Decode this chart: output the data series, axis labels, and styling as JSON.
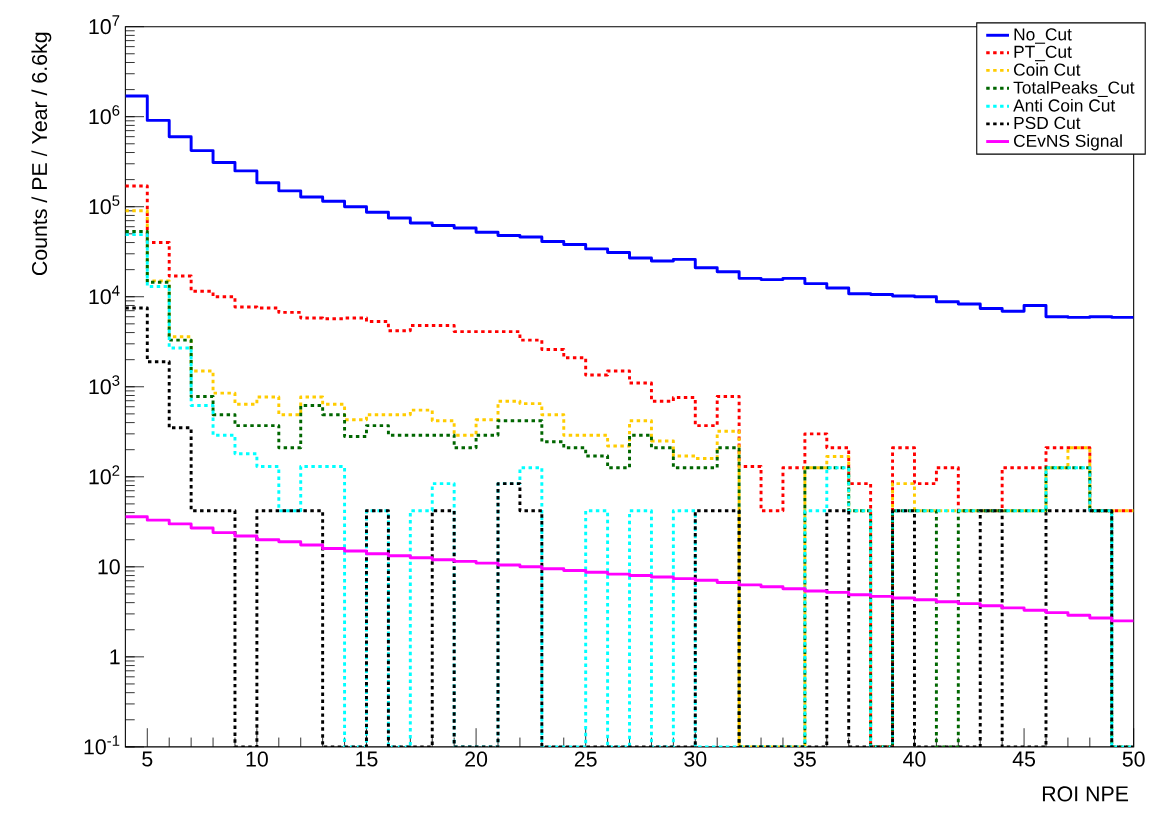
{
  "chart_data": {
    "type": "histogram",
    "xlabel": "ROI NPE",
    "ylabel": "Counts / PE / Year / 6.6kg",
    "bins": [
      4,
      5,
      6,
      7,
      8,
      9,
      10,
      11,
      12,
      13,
      14,
      15,
      16,
      17,
      18,
      19,
      20,
      21,
      22,
      23,
      24,
      25,
      26,
      27,
      28,
      29,
      30,
      31,
      32,
      33,
      34,
      35,
      36,
      37,
      38,
      39,
      40,
      41,
      42,
      43,
      44,
      45,
      46,
      47,
      48,
      49,
      50
    ],
    "xlim": [
      4,
      50
    ],
    "xticks": [
      5,
      10,
      15,
      20,
      25,
      30,
      35,
      40,
      45,
      50
    ],
    "ylim": [
      0.1,
      10000000
    ],
    "log": "y",
    "yticks": [
      {
        "value": 0.1,
        "label": "10$^{-1}$"
      },
      1,
      10,
      {
        "value": 100,
        "label": "10$^{2}$"
      },
      {
        "value": 1000,
        "label": "10$^{3}$"
      },
      {
        "value": 10000,
        "label": "10$^{4}$"
      },
      {
        "value": 100000,
        "label": "10$^{5}$"
      },
      {
        "value": 1000000,
        "label": "10$^{6}$"
      },
      {
        "value": 10000000,
        "label": "10$^{7}$"
      }
    ],
    "legend": "top right",
    "series": [
      {
        "name": "No_Cut",
        "color": "#0000ff",
        "line_style": "solid",
        "values": [
          1700000,
          910000,
          600000,
          420000,
          310000,
          250000,
          185000,
          150000,
          128000,
          115000,
          100000,
          87000,
          75000,
          66000,
          62000,
          58000,
          52000,
          48000,
          46000,
          41000,
          38000,
          34000,
          31000,
          27000,
          25000,
          26000,
          21000,
          19000,
          16000,
          15500,
          16000,
          14000,
          12500,
          10800,
          10600,
          10200,
          10000,
          8800,
          8300,
          7400,
          6900,
          8000,
          6000,
          5900,
          6000,
          5900
        ]
      },
      {
        "name": "PT_Cut",
        "color": "#ff0000",
        "line_style": "dotted",
        "values": [
          170000,
          40000,
          17000,
          11500,
          10000,
          7700,
          7500,
          6700,
          5800,
          5700,
          5800,
          5300,
          4200,
          4800,
          4800,
          4100,
          4100,
          4100,
          3300,
          2600,
          2100,
          1350,
          1500,
          1100,
          690,
          760,
          370,
          780,
          130,
          42,
          126,
          300,
          210,
          84,
          null,
          210,
          84,
          126,
          42,
          42,
          126,
          126,
          210,
          210,
          42,
          42
        ]
      },
      {
        "name": "Coin Cut",
        "color": "#ffcc00",
        "line_style": "dotted",
        "values": [
          90000,
          15000,
          3600,
          1500,
          850,
          640,
          770,
          490,
          770,
          640,
          430,
          490,
          490,
          550,
          420,
          290,
          430,
          690,
          650,
          490,
          290,
          290,
          220,
          420,
          250,
          170,
          160,
          320,
          null,
          null,
          null,
          126,
          168,
          42,
          null,
          84,
          42,
          42,
          42,
          42,
          42,
          42,
          126,
          210,
          42,
          42
        ]
      },
      {
        "name": "TotalPeaks_Cut",
        "color": "#006600",
        "line_style": "dotted",
        "values": [
          53000,
          14500,
          3300,
          780,
          490,
          370,
          370,
          210,
          620,
          490,
          280,
          370,
          290,
          290,
          290,
          210,
          290,
          420,
          420,
          245,
          210,
          170,
          126,
          290,
          210,
          126,
          126,
          210,
          null,
          null,
          null,
          126,
          126,
          42,
          null,
          42,
          42,
          null,
          42,
          42,
          42,
          42,
          126,
          126,
          42,
          null
        ]
      },
      {
        "name": "Anti Coin Cut",
        "color": "#00ffff",
        "line_style": "dotted",
        "values": [
          49000,
          13000,
          2700,
          620,
          290,
          180,
          130,
          42,
          130,
          130,
          null,
          42,
          null,
          42,
          84,
          null,
          null,
          84,
          126,
          null,
          null,
          42,
          null,
          42,
          null,
          42,
          null,
          null,
          null,
          null,
          null,
          42,
          126,
          42,
          null,
          42,
          42,
          42,
          42,
          42,
          42,
          42,
          126,
          126,
          42,
          null
        ]
      },
      {
        "name": "PSD Cut",
        "color": "#000000",
        "line_style": "dotted",
        "values": [
          7500,
          1900,
          350,
          42,
          42,
          null,
          42,
          42,
          42,
          null,
          null,
          42,
          null,
          null,
          42,
          null,
          null,
          84,
          42,
          null,
          null,
          null,
          null,
          null,
          null,
          null,
          42,
          42,
          null,
          null,
          null,
          null,
          42,
          null,
          null,
          42,
          null,
          null,
          null,
          42,
          null,
          null,
          42,
          42,
          42,
          null
        ]
      },
      {
        "name": "CEvNS Signal",
        "color": "#ff00ff",
        "line_style": "solid",
        "values": [
          36,
          33,
          30,
          27,
          24,
          22,
          20,
          19,
          17.5,
          16,
          15,
          14,
          13.3,
          12.6,
          12,
          11.5,
          11,
          10.5,
          10,
          9.5,
          9.1,
          8.7,
          8.3,
          8,
          7.7,
          7.4,
          7.1,
          6.7,
          6.3,
          6,
          5.7,
          5.4,
          5.2,
          4.9,
          4.7,
          4.5,
          4.3,
          4.1,
          3.9,
          3.7,
          3.5,
          3.3,
          3.1,
          2.9,
          2.7,
          2.5
        ]
      }
    ]
  }
}
